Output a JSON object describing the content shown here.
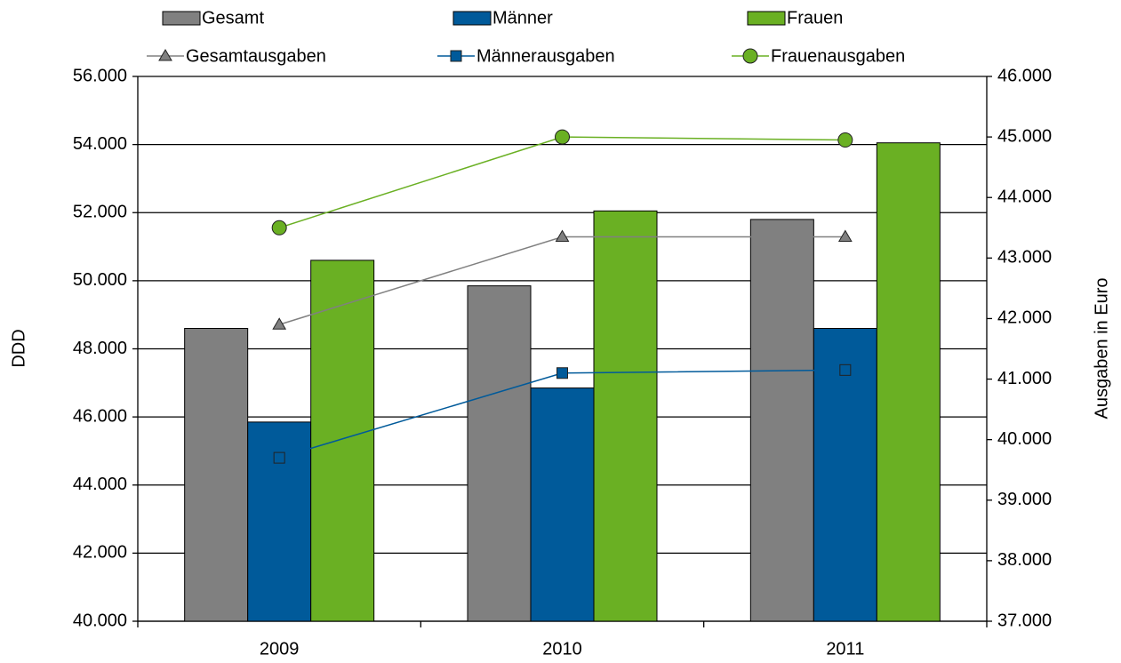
{
  "chart_data": {
    "type": "bar",
    "categories": [
      "2009",
      "2010",
      "2011"
    ],
    "series": [
      {
        "name": "Gesamt",
        "color": "#808080",
        "values": [
          48600,
          49850,
          51800
        ]
      },
      {
        "name": "Männer",
        "color": "#005a9a",
        "values": [
          45850,
          46850,
          48600
        ]
      },
      {
        "name": "Frauen",
        "color": "#6ab023",
        "values": [
          50600,
          52050,
          54050
        ]
      },
      {
        "name": "Gesamtausgaben",
        "type": "line",
        "axis": "y2",
        "marker": "triangle",
        "color": "#808080",
        "values": [
          41900,
          43350,
          43350
        ]
      },
      {
        "name": "Männerausgaben",
        "type": "line",
        "axis": "y2",
        "marker": "square",
        "color": "#005a9a",
        "values": [
          39700,
          41100,
          41150
        ]
      },
      {
        "name": "Frauenausgaben",
        "type": "line",
        "axis": "y2",
        "marker": "circle",
        "color": "#6ab023",
        "values": [
          43500,
          45000,
          44950
        ]
      }
    ],
    "y_label": "DDD",
    "y2_label": "Ausgaben in Euro",
    "ylim": [
      40000,
      56000
    ],
    "yticks": [
      {
        "value": 40000,
        "label": "40.000"
      },
      {
        "value": 42000,
        "label": "42.000"
      },
      {
        "value": 44000,
        "label": "44.000"
      },
      {
        "value": 46000,
        "label": "46.000"
      },
      {
        "value": 48000,
        "label": "48.000"
      },
      {
        "value": 50000,
        "label": "50.000"
      },
      {
        "value": 52000,
        "label": "52.000"
      },
      {
        "value": 54000,
        "label": "54.000"
      },
      {
        "value": 56000,
        "label": "56.000"
      }
    ],
    "y2lim": [
      37000,
      46000
    ],
    "y2ticks": [
      {
        "value": 37000,
        "label": "37.000"
      },
      {
        "value": 38000,
        "label": "38.000"
      },
      {
        "value": 39000,
        "label": "39.000"
      },
      {
        "value": 40000,
        "label": "40.000"
      },
      {
        "value": 41000,
        "label": "41.000"
      },
      {
        "value": 42000,
        "label": "42.000"
      },
      {
        "value": 43000,
        "label": "43.000"
      },
      {
        "value": 44000,
        "label": "44.000"
      },
      {
        "value": 45000,
        "label": "45.000"
      },
      {
        "value": 46000,
        "label": "46.000"
      }
    ],
    "grid": true,
    "legend": "top"
  }
}
